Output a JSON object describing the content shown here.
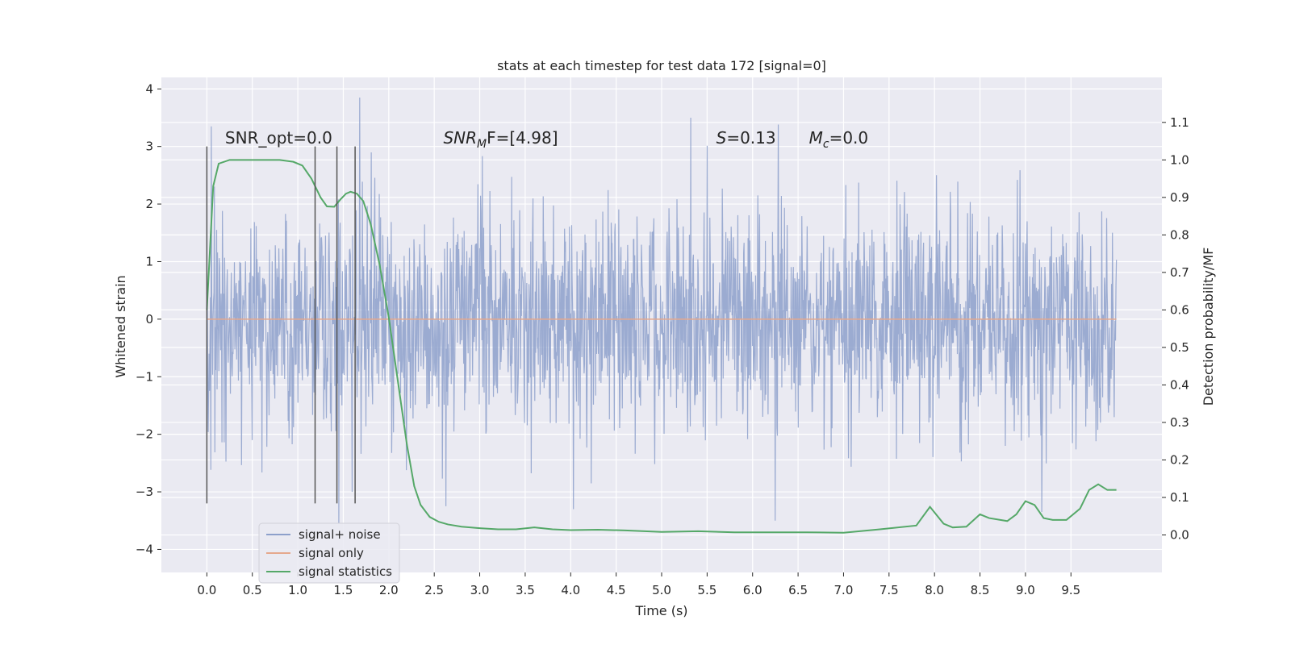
{
  "chart_data": {
    "type": "line",
    "title": "stats at each timestep for test data 172 [signal=0]",
    "xlabel": "Time (s)",
    "ylabel": "Whitened strain",
    "y2label": "Detection probability/MF",
    "xlim": [
      -0.5,
      10.5
    ],
    "ylim": [
      -4.4,
      4.2
    ],
    "y2lim": [
      -0.1,
      1.22
    ],
    "xticks": [
      0.0,
      0.5,
      1.0,
      1.5,
      2.0,
      2.5,
      3.0,
      3.5,
      4.0,
      4.5,
      5.0,
      5.5,
      6.0,
      6.5,
      7.0,
      7.5,
      8.0,
      8.5,
      9.0,
      9.5
    ],
    "xtick_labels": [
      "0.0",
      "0.5",
      "1.0",
      "1.5",
      "2.0",
      "2.5",
      "3.0",
      "3.5",
      "4.0",
      "4.5",
      "5.0",
      "5.5",
      "6.0",
      "6.5",
      "7.0",
      "7.5",
      "8.0",
      "8.5",
      "9.0",
      "9.5"
    ],
    "yticks": [
      -4,
      -3,
      -2,
      -1,
      0,
      1,
      2,
      3,
      4
    ],
    "ytick_labels": [
      "−4",
      "−3",
      "−2",
      "−1",
      "0",
      "1",
      "2",
      "3",
      "4"
    ],
    "y2ticks": [
      0.0,
      0.1,
      0.2,
      0.3,
      0.4,
      0.5,
      0.6,
      0.7,
      0.8,
      0.9,
      1.0,
      1.1
    ],
    "y2tick_labels": [
      "0.0",
      "0.1",
      "0.2",
      "0.3",
      "0.4",
      "0.5",
      "0.6",
      "0.7",
      "0.8",
      "0.9",
      "1.0",
      "1.1"
    ],
    "grid": true,
    "legend_position": "lower-left",
    "annotations": [
      {
        "id": "snr-opt",
        "x": 0.2,
        "y": 3.05,
        "prefix": "SNR_opt",
        "sub": "",
        "suffix": "=0.0",
        "italic": false
      },
      {
        "id": "snr-mf",
        "x": 2.6,
        "y": 3.05,
        "prefix": "SNR",
        "sub": "M",
        "suffix": "F=[4.98]",
        "italic": true
      },
      {
        "id": "s-value",
        "x": 5.6,
        "y": 3.05,
        "prefix": "S",
        "sub": "",
        "suffix": "=0.13",
        "italic": true
      },
      {
        "id": "mc-value",
        "x": 6.62,
        "y": 3.05,
        "prefix": "M",
        "sub": "c",
        "suffix": "=0.0",
        "italic": true
      }
    ],
    "vlines": [
      {
        "x": 0.0,
        "ymin": -3.2,
        "ymax": 3.0
      },
      {
        "x": 1.19,
        "ymin": -3.2,
        "ymax": 3.0
      },
      {
        "x": 1.43,
        "ymin": -3.2,
        "ymax": 3.0
      },
      {
        "x": 1.63,
        "ymin": -3.2,
        "ymax": 3.0
      }
    ],
    "series": [
      {
        "name": "signal+ noise",
        "color": "#8da0cb",
        "axis": "left",
        "t_start": 0.0,
        "t_end": 10.0,
        "amplitude_std": 0.95,
        "samples_in_plot": 2048,
        "note_values": "dense noise trace; peaks read from figure",
        "peaks": [
          {
            "x": 0.05,
            "y": 3.35
          },
          {
            "x": 1.45,
            "y": 3.4
          },
          {
            "x": 1.68,
            "y": 3.85
          },
          {
            "x": 1.45,
            "y": -3.55
          },
          {
            "x": 5.32,
            "y": 3.5
          },
          {
            "x": 6.28,
            "y": 3.38
          },
          {
            "x": 6.25,
            "y": -3.5
          },
          {
            "x": 4.03,
            "y": -3.3
          },
          {
            "x": 9.18,
            "y": -3.35
          },
          {
            "x": 2.63,
            "y": -3.25
          }
        ]
      },
      {
        "name": "signal only",
        "color": "#e5a88d",
        "axis": "left",
        "x": [
          0.0,
          10.0
        ],
        "y": [
          0.0,
          0.0
        ]
      },
      {
        "name": "signal statistics",
        "color": "#55a868",
        "axis": "right",
        "x": [
          0.0,
          0.07,
          0.13,
          0.25,
          0.4,
          0.6,
          0.8,
          0.95,
          1.05,
          1.15,
          1.25,
          1.32,
          1.4,
          1.47,
          1.53,
          1.58,
          1.65,
          1.72,
          1.8,
          1.9,
          2.0,
          2.1,
          2.2,
          2.28,
          2.35,
          2.45,
          2.55,
          2.65,
          2.8,
          3.0,
          3.2,
          3.4,
          3.6,
          3.8,
          4.0,
          4.3,
          4.6,
          5.0,
          5.4,
          5.8,
          6.2,
          6.6,
          7.0,
          7.4,
          7.8,
          7.95,
          8.1,
          8.2,
          8.35,
          8.5,
          8.6,
          8.8,
          8.9,
          9.0,
          9.1,
          9.2,
          9.3,
          9.45,
          9.6,
          9.7,
          9.8,
          9.9,
          10.0
        ],
        "y": [
          0.6,
          0.93,
          0.99,
          1.0,
          1.0,
          1.0,
          1.0,
          0.995,
          0.985,
          0.95,
          0.9,
          0.876,
          0.875,
          0.895,
          0.91,
          0.915,
          0.91,
          0.89,
          0.83,
          0.72,
          0.58,
          0.41,
          0.24,
          0.13,
          0.08,
          0.048,
          0.035,
          0.028,
          0.022,
          0.018,
          0.015,
          0.015,
          0.02,
          0.015,
          0.013,
          0.014,
          0.012,
          0.008,
          0.01,
          0.007,
          0.007,
          0.007,
          0.006,
          0.015,
          0.025,
          0.075,
          0.03,
          0.02,
          0.022,
          0.055,
          0.045,
          0.037,
          0.055,
          0.09,
          0.08,
          0.045,
          0.04,
          0.04,
          0.07,
          0.12,
          0.135,
          0.12,
          0.12
        ]
      }
    ],
    "legend": [
      {
        "name": "signal+ noise",
        "color": "#8da0cb"
      },
      {
        "name": "signal only",
        "color": "#e5a88d"
      },
      {
        "name": "signal statistics",
        "color": "#55a868"
      }
    ]
  }
}
